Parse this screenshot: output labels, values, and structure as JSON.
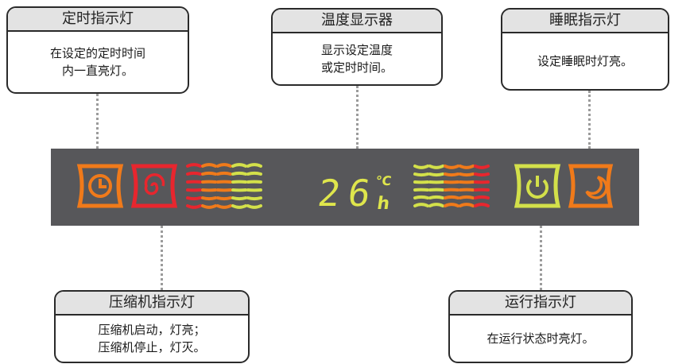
{
  "callouts": {
    "timer": {
      "title": "定时指示灯",
      "text": "在设定的定时时间\n内一直亮灯。"
    },
    "temperature": {
      "title": "温度显示器",
      "text": "显示设定温度\n或定时时间。"
    },
    "sleep": {
      "title": "睡眠指示灯",
      "text": "设定睡眠时灯亮。"
    },
    "compressor": {
      "title": "压缩机指示灯",
      "text": "压缩机启动，灯亮；\n压缩机停止，灯灭。"
    },
    "running": {
      "title": "运行指示灯",
      "text": "在运行状态时亮灯。"
    }
  },
  "display": {
    "temperature_value": "26",
    "unit_celsius": "°C",
    "unit_hour": "h"
  },
  "icons": [
    "timer-icon",
    "compressor-swirl-icon",
    "power-icon",
    "sleep-moon-icon"
  ],
  "colors": {
    "panel": "#57575a",
    "orange": "#f07a1a",
    "red": "#e8262e",
    "yellow_green": "#d3e04a",
    "callout_header": "#e3e3e3"
  }
}
